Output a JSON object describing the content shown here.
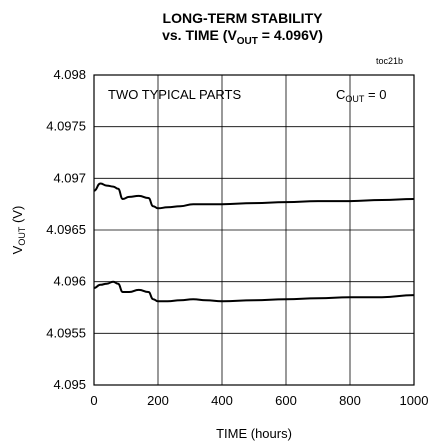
{
  "chart_data": {
    "type": "line",
    "title_line1": "LONG-TERM STABILITY",
    "title_line2_prefix": "vs. TIME (V",
    "title_line2_sub": "OUT",
    "title_line2_suffix": " = 4.096V)",
    "tag": "toc21b",
    "xlabel": "TIME (hours)",
    "ylabel_main": "V",
    "ylabel_sub": "OUT",
    "ylabel_suffix": " (V)",
    "xlim": [
      0,
      1000
    ],
    "ylim": [
      4.095,
      4.098
    ],
    "x_ticks": [
      "0",
      "200",
      "400",
      "600",
      "800",
      "1000"
    ],
    "y_ticks": [
      "4.095",
      "4.0955",
      "4.096",
      "4.0965",
      "4.097",
      "4.0975",
      "4.098"
    ],
    "grid": true,
    "annotations": {
      "parts": "TWO TYPICAL PARTS",
      "cout_main": "C",
      "cout_sub": "OUT",
      "cout_suffix": " = 0"
    },
    "series": [
      {
        "x": [
          0,
          20,
          40,
          60,
          75,
          90,
          110,
          140,
          170,
          185,
          200,
          230,
          270,
          310,
          350,
          400,
          500,
          600,
          700,
          800,
          900,
          1000
        ],
        "values": [
          4.09688,
          4.09695,
          4.09693,
          4.09692,
          4.0969,
          4.0968,
          4.09682,
          4.09683,
          4.09681,
          4.09673,
          4.09671,
          4.09672,
          4.09673,
          4.09675,
          4.09675,
          4.09675,
          4.09676,
          4.09677,
          4.09678,
          4.09678,
          4.09679,
          4.0968
        ]
      },
      {
        "x": [
          0,
          20,
          40,
          60,
          75,
          90,
          110,
          140,
          170,
          185,
          200,
          230,
          270,
          310,
          350,
          400,
          500,
          600,
          700,
          800,
          900,
          1000
        ],
        "values": [
          4.09594,
          4.09597,
          4.09598,
          4.096,
          4.09598,
          4.0959,
          4.0959,
          4.09592,
          4.0959,
          4.09583,
          4.09581,
          4.09581,
          4.09582,
          4.09583,
          4.09582,
          4.09581,
          4.09582,
          4.09583,
          4.09584,
          4.09585,
          4.09585,
          4.09587
        ]
      }
    ]
  }
}
